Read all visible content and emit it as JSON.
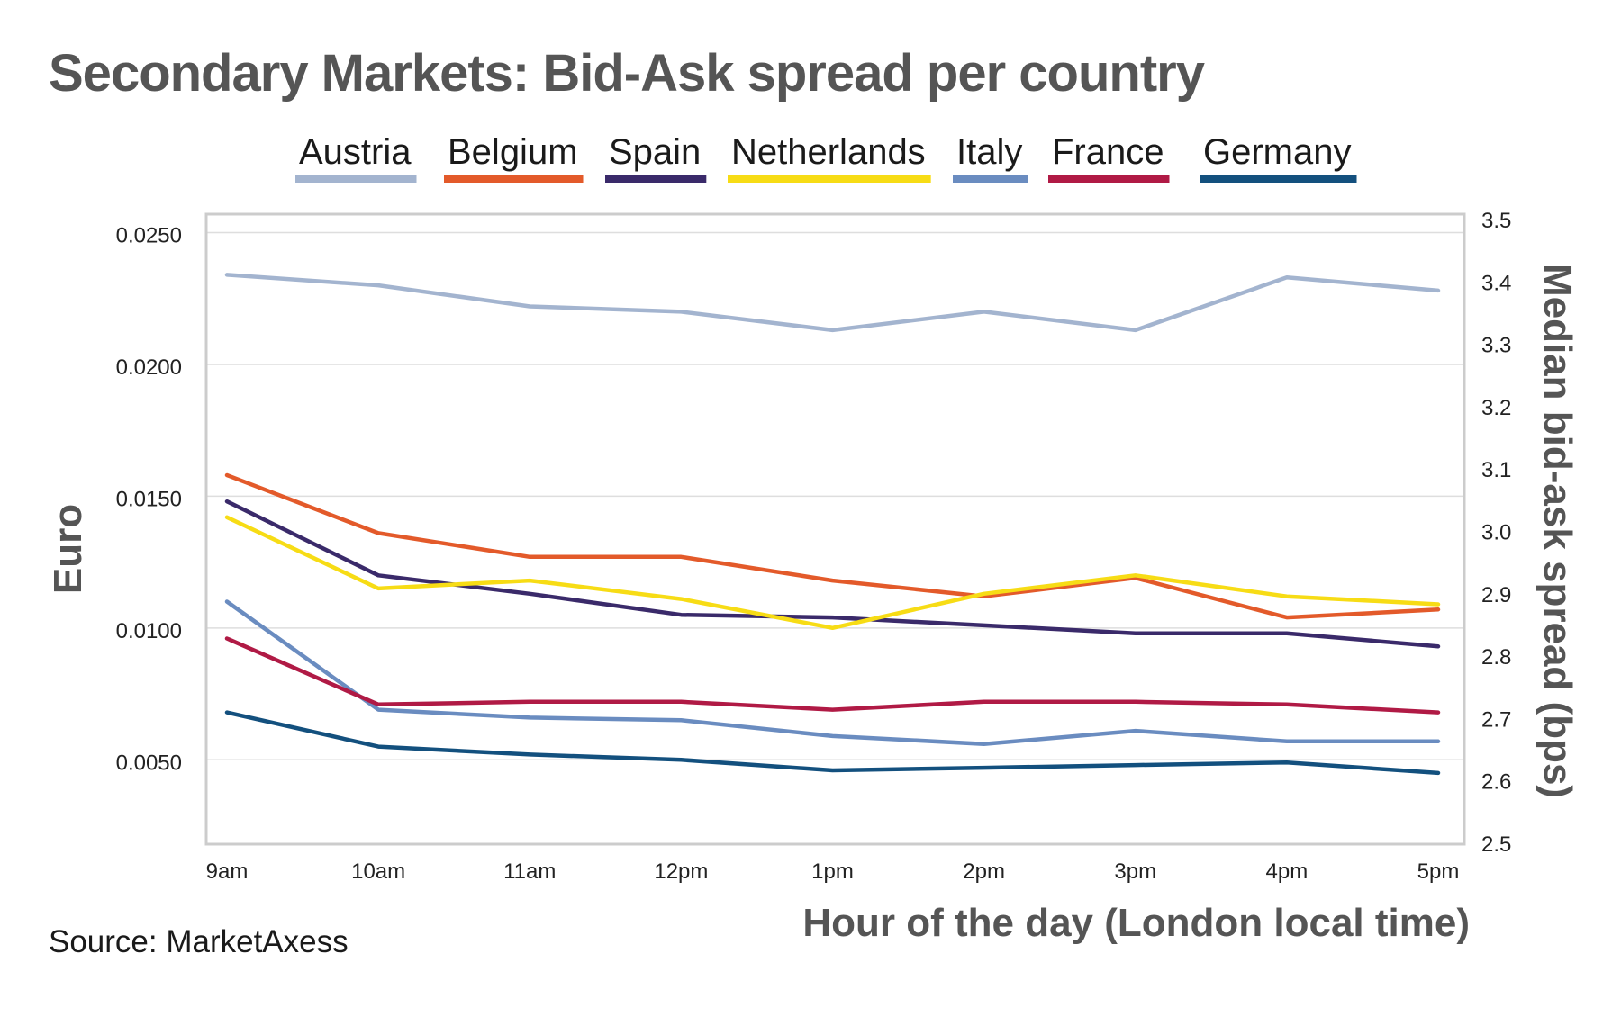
{
  "title": "Secondary Markets: Bid-Ask spread per country",
  "source": "Source: MarketAxess",
  "chart_data": {
    "type": "line",
    "title": "Secondary Markets: Bid-Ask spread per country",
    "xlabel": "Hour of the day (London local time)",
    "ylabel": "Euro",
    "ylabel_right": "Median bid-ask spread (bps)",
    "categories": [
      "9am",
      "10am",
      "11am",
      "12pm",
      "1pm",
      "2pm",
      "3pm",
      "4pm",
      "5pm"
    ],
    "ylim": [
      0.0018,
      0.0257
    ],
    "yticks": [
      0.025,
      0.02,
      0.015,
      0.01,
      0.005
    ],
    "ytick_labels": [
      "0.0250",
      "0.0200",
      "0.0150",
      "0.0100",
      "0.0050"
    ],
    "ylim_right": [
      2.5,
      3.5
    ],
    "yticks_right": [
      3.5,
      3.4,
      3.3,
      3.2,
      3.1,
      3.0,
      2.9,
      2.8,
      2.7,
      2.6,
      2.5
    ],
    "ytick_labels_right": [
      "3.5",
      "3.4",
      "3.3",
      "3.2",
      "3.1",
      "3.0",
      "2.9",
      "2.8",
      "2.7",
      "2.6",
      "2.5"
    ],
    "grid": true,
    "legend": "top",
    "series": [
      {
        "name": "Austria",
        "color": "#a3b4cf",
        "values": [
          0.0234,
          0.023,
          0.0222,
          0.022,
          0.0213,
          0.022,
          0.0213,
          0.0233,
          0.0228
        ]
      },
      {
        "name": "Belgium",
        "color": "#e35a2a",
        "values": [
          0.0158,
          0.0136,
          0.0127,
          0.0127,
          0.0118,
          0.0112,
          0.0119,
          0.0104,
          0.0107
        ]
      },
      {
        "name": "Spain",
        "color": "#3a2a6a",
        "values": [
          0.0148,
          0.012,
          0.0113,
          0.0105,
          0.0104,
          0.0101,
          0.0098,
          0.0098,
          0.0093
        ]
      },
      {
        "name": "Netherlands",
        "color": "#f7dc15",
        "values": [
          0.0142,
          0.0115,
          0.0118,
          0.0111,
          0.01,
          0.0113,
          0.012,
          0.0112,
          0.0109
        ]
      },
      {
        "name": "Italy",
        "color": "#6a8cc0",
        "values": [
          0.011,
          0.0069,
          0.0066,
          0.0065,
          0.0059,
          0.0056,
          0.0061,
          0.0057,
          0.0057
        ]
      },
      {
        "name": "France",
        "color": "#b01a45",
        "values": [
          0.0096,
          0.0071,
          0.0072,
          0.0072,
          0.0069,
          0.0072,
          0.0072,
          0.0071,
          0.0068
        ]
      },
      {
        "name": "Germany",
        "color": "#13507e",
        "values": [
          0.0068,
          0.0055,
          0.0052,
          0.005,
          0.0046,
          0.0047,
          0.0048,
          0.0049,
          0.0045
        ]
      }
    ]
  }
}
